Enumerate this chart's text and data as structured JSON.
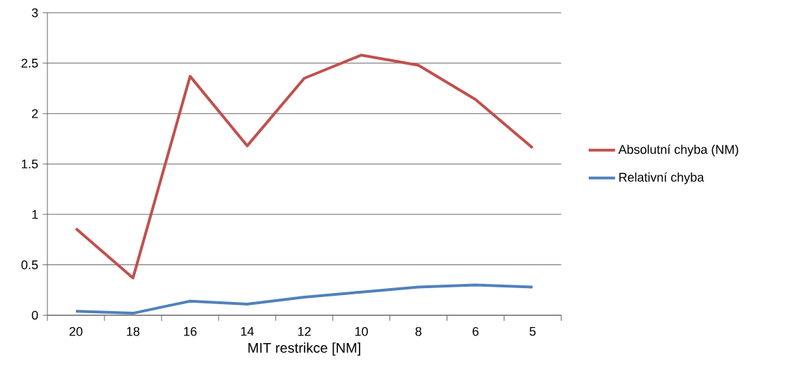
{
  "chart_data": {
    "type": "line",
    "xlabel": "MIT restrikce [NM]",
    "categories": [
      "20",
      "18",
      "16",
      "14",
      "12",
      "10",
      "8",
      "6",
      "5"
    ],
    "series": [
      {
        "name": "Absolutní chyba (NM)",
        "color": "#c0504d",
        "values": [
          0.86,
          0.37,
          2.37,
          1.68,
          2.35,
          2.58,
          2.48,
          2.14,
          1.66
        ]
      },
      {
        "name": "Relativní chyba",
        "color": "#4f81bd",
        "values": [
          0.04,
          0.02,
          0.14,
          0.11,
          0.18,
          0.23,
          0.28,
          0.3,
          0.28
        ]
      }
    ],
    "ylim": [
      0,
      3
    ],
    "yticks": [
      0,
      0.5,
      1,
      1.5,
      2,
      2.5,
      3
    ],
    "grid": "y",
    "legend": "right",
    "marker": "none",
    "line_style": "solid"
  }
}
